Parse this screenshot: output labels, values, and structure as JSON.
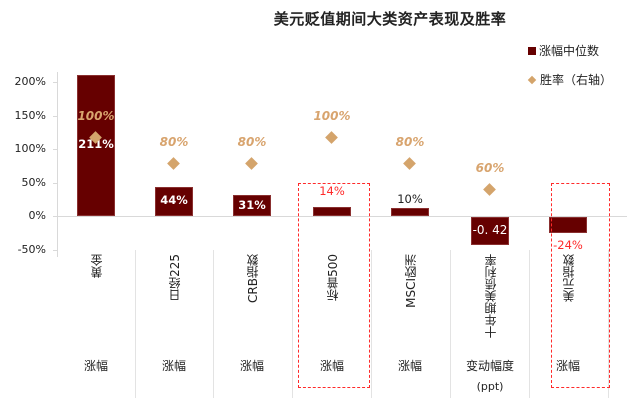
{
  "chart_data": {
    "type": "bar",
    "title": "美元贬值期间大类资产表现及胜率",
    "categories": [
      "黄金",
      "日经225",
      "CRB指数",
      "标普500",
      "MSCI欧洲",
      "十年期美债利率",
      "美元指数"
    ],
    "metrics": [
      "涨幅",
      "涨幅",
      "涨幅",
      "涨幅",
      "涨幅",
      "变动幅度",
      "涨幅"
    ],
    "metric_units": [
      "",
      "",
      "",
      "",
      "",
      "(ppt)",
      ""
    ],
    "series": [
      {
        "name": "涨幅中位数",
        "type": "bar",
        "axis": "left",
        "color": "#660000",
        "values": [
          211,
          44,
          31,
          14,
          10,
          -0.42,
          -24
        ],
        "labels": [
          "211%",
          "44%",
          "31%",
          "14%",
          "10%",
          "-0. 42",
          "-24%"
        ]
      },
      {
        "name": "胜率（右轴）",
        "type": "scatter",
        "marker": "diamond",
        "axis": "right",
        "color": "#d4a46b",
        "values": [
          100,
          80,
          80,
          100,
          80,
          60,
          null
        ],
        "labels": [
          "100%",
          "80%",
          "80%",
          "100%",
          "80%",
          "60%",
          ""
        ]
      }
    ],
    "y_axis": {
      "ticks": [
        "200%",
        "150%",
        "100%",
        "50%",
        "0%",
        "-50%"
      ],
      "range": [
        -50,
        225
      ]
    },
    "legend": {
      "position": "right-top",
      "entries": [
        "涨幅中位数",
        "胜率（右轴）"
      ]
    },
    "highlighted_categories": [
      "标普500",
      "美元指数"
    ],
    "grid": false
  },
  "legend": {
    "bar": "涨幅中位数",
    "marker": "胜率（右轴）"
  }
}
